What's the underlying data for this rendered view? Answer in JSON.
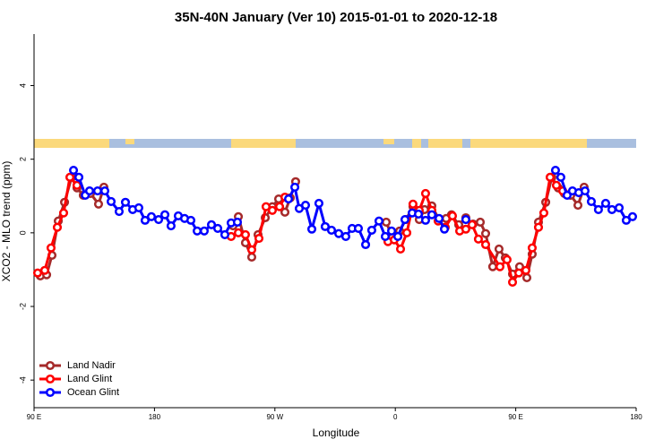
{
  "chart_data": {
    "type": "line",
    "title": "35N-40N January (Ver 10)   2015-01-01 to 2020-12-18",
    "x_label": "Longitude",
    "y_label": "XCO2 - MLO trend (ppm)",
    "xlim": [
      90,
      540
    ],
    "xticks": [
      {
        "value": 90,
        "label": "90 E"
      },
      {
        "value": 180,
        "label": "180"
      },
      {
        "value": 270,
        "label": "90 W"
      },
      {
        "value": 360,
        "label": "0"
      },
      {
        "value": 450,
        "label": "90 E"
      },
      {
        "value": 540,
        "label": "180"
      }
    ],
    "ylim": [
      -4.75,
      5.4
    ],
    "yticks": [
      -4,
      -2,
      0,
      2,
      4
    ],
    "legend": "bottom-left",
    "series": [
      {
        "name": "Land Nadir",
        "color": "#a52a2a",
        "x": [
          94.7,
          99.4,
          103.4,
          108.1,
          112.8,
          118.1,
          122.1,
          126.8,
          132.2,
          138.2,
          142.2,
          null,
          238.7,
          242.7,
          248.0,
          252.7,
          257.4,
          262.8,
          268.1,
          272.8,
          277.5,
          281.5,
          285.5,
          null,
          353.2,
          357.8,
          363.2,
          367.9,
          373.2,
          377.9,
          381.9,
          387.3,
          392.7,
          398.0,
          402.0,
          407.4,
          412.7,
          418.1,
          423.5,
          427.5,
          432.8,
          437.5,
          442.2,
          447.6,
          452.9,
          458.3,
          462.3,
          467.0,
          472.4,
          477.0,
          481.7,
          486.4,
          491.1,
          496.5,
          501.1
        ],
        "values": [
          -1.17,
          -1.14,
          -0.61,
          0.32,
          0.83,
          1.51,
          1.22,
          1.02,
          1.07,
          0.78,
          1.24,
          null,
          0.19,
          0.44,
          -0.27,
          -0.66,
          -0.05,
          0.41,
          0.71,
          0.92,
          0.56,
          0.95,
          1.39,
          null,
          0.29,
          -0.12,
          0.05,
          0.36,
          0.71,
          0.36,
          0.63,
          0.73,
          0.36,
          0.39,
          0.49,
          0.22,
          0.41,
          0.24,
          0.29,
          -0.02,
          -0.92,
          -0.44,
          -0.68,
          -1.12,
          -0.92,
          -1.22,
          -0.58,
          0.29,
          0.83,
          1.51,
          1.22,
          1.07,
          1.02,
          0.75,
          1.24
        ]
      },
      {
        "name": "Land Glint",
        "color": "#ff0000",
        "x": [
          92.7,
          98.0,
          102.7,
          107.4,
          112.1,
          116.8,
          122.1,
          null,
          237.3,
          242.7,
          248.0,
          252.7,
          258.1,
          263.4,
          268.1,
          273.5,
          277.5,
          null,
          354.5,
          359.2,
          363.9,
          368.6,
          373.2,
          377.9,
          382.6,
          387.3,
          392.0,
          397.3,
          402.7,
          408.1,
          412.7,
          417.4,
          422.1,
          427.5,
          438.2,
          443.5,
          447.6,
          452.3,
          457.6,
          462.3,
          467.0,
          471.0,
          475.7,
          480.4,
          485.1
        ],
        "values": [
          -1.09,
          -1.02,
          -0.41,
          0.15,
          0.54,
          1.51,
          1.29,
          null,
          -0.1,
          0.0,
          -0.05,
          -0.46,
          -0.15,
          0.71,
          0.61,
          0.71,
          0.97,
          null,
          -0.24,
          -0.19,
          -0.44,
          0.0,
          0.78,
          0.61,
          1.07,
          0.61,
          0.32,
          0.15,
          0.46,
          0.05,
          0.1,
          0.22,
          -0.17,
          -0.32,
          -0.92,
          -0.73,
          -1.34,
          -1.09,
          -1.02,
          -0.41,
          0.15,
          0.54,
          1.51,
          1.29,
          1.14
        ]
      },
      {
        "name": "Ocean Glint",
        "color": "#0000ff",
        "x": [
          119.5,
          123.5,
          128.3,
          131.5,
          137.5,
          142.9,
          147.6,
          153.6,
          158.3,
          163.7,
          168.3,
          173.0,
          177.7,
          183.1,
          187.8,
          192.4,
          197.8,
          202.5,
          207.2,
          211.9,
          217.2,
          222.6,
          227.3,
          232.6,
          237.3,
          242.0,
          null,
          280.2,
          284.9,
          288.2,
          292.9,
          297.6,
          302.9,
          307.6,
          312.3,
          317.7,
          323.0,
          327.7,
          332.4,
          337.8,
          342.4,
          347.8,
          352.5,
          357.2,
          361.9,
          367.2,
          372.6,
          377.3,
          382.6,
          387.3,
          392.7,
          396.7,
          null,
          412.7,
          null,
          479.7,
          483.7,
          488.4,
          492.4,
          497.1,
          501.8,
          506.5,
          511.8,
          517.2,
          521.9,
          527.3,
          532.6,
          537.3
        ],
        "values": [
          1.7,
          1.51,
          1.02,
          1.14,
          1.14,
          1.14,
          0.85,
          0.58,
          0.83,
          0.63,
          0.68,
          0.34,
          0.44,
          0.36,
          0.49,
          0.19,
          0.46,
          0.39,
          0.34,
          0.05,
          0.05,
          0.22,
          0.12,
          -0.05,
          0.27,
          0.29,
          null,
          0.92,
          1.24,
          0.66,
          0.75,
          0.1,
          0.8,
          0.17,
          0.07,
          -0.02,
          -0.1,
          0.12,
          0.12,
          -0.32,
          0.07,
          0.32,
          -0.1,
          0.05,
          -0.1,
          0.36,
          0.54,
          0.51,
          0.34,
          0.49,
          0.39,
          0.1,
          null,
          0.36,
          null,
          1.7,
          1.51,
          1.02,
          1.14,
          1.09,
          1.14,
          0.85,
          0.63,
          0.8,
          0.63,
          0.68,
          0.34,
          0.44
        ]
      }
    ]
  }
}
